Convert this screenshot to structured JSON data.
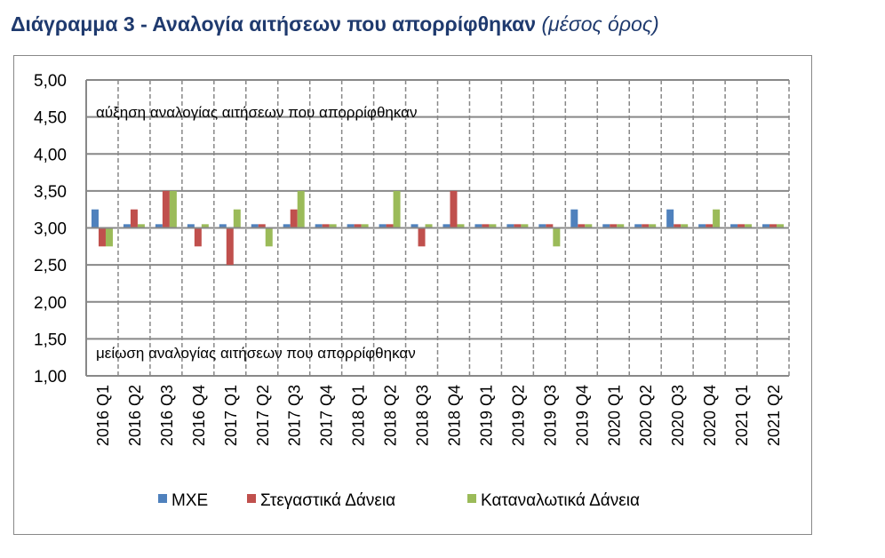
{
  "title": "Διάγραμμα 3 - Αναλογία αιτήσεων που απορρίφθηκαν",
  "subtitle": "(μέσος όρος)",
  "chart_data": {
    "type": "bar",
    "title": "Διάγραμμα 3 - Αναλογία αιτήσεων που απορρίφθηκαν (μέσος όρος)",
    "baseline": 3.0,
    "ylim": [
      1.0,
      5.0
    ],
    "yticks": [
      "1,00",
      "1,50",
      "2,00",
      "2,50",
      "3,00",
      "3,50",
      "4,00",
      "4,50",
      "5,00"
    ],
    "grid": true,
    "legend": "bottom",
    "annotations": {
      "upper": "αύξηση αναλογίας αιτήσεων που απορρίφθηκαν",
      "lower": "μείωση αναλογίας αιτήσεων που απορρίφθηκαν"
    },
    "categories": [
      "2016 Q1",
      "2016 Q2",
      "2016 Q3",
      "2016 Q4",
      "2017 Q1",
      "2017 Q2",
      "2017 Q3",
      "2017 Q4",
      "2018 Q1",
      "2018 Q2",
      "2018 Q3",
      "2018 Q4",
      "2019 Q1",
      "2019 Q2",
      "2019 Q3",
      "2019 Q4",
      "2020 Q1",
      "2020 Q2",
      "2020 Q3",
      "2020 Q4",
      "2021 Q1",
      "2021 Q2"
    ],
    "series": [
      {
        "name": "ΜΧΕ",
        "color": "#4f81bd",
        "values": [
          3.25,
          3.05,
          3.05,
          3.05,
          3.05,
          3.05,
          3.05,
          3.05,
          3.05,
          3.05,
          3.05,
          3.05,
          3.05,
          3.05,
          3.05,
          3.25,
          3.05,
          3.05,
          3.25,
          3.05,
          3.05,
          3.05
        ]
      },
      {
        "name": "Στεγαστικά Δάνεια",
        "color": "#c0504d",
        "values": [
          2.75,
          3.25,
          3.5,
          2.75,
          2.5,
          3.05,
          3.25,
          3.05,
          3.05,
          3.05,
          2.75,
          3.5,
          3.05,
          3.05,
          3.05,
          3.05,
          3.05,
          3.05,
          3.05,
          3.05,
          3.05,
          3.05
        ]
      },
      {
        "name": "Καταναλωτικά Δάνεια",
        "color": "#9bbb59",
        "values": [
          2.75,
          3.05,
          3.5,
          3.05,
          3.25,
          2.75,
          3.5,
          3.05,
          3.05,
          3.5,
          3.05,
          3.05,
          3.05,
          3.05,
          2.75,
          3.05,
          3.05,
          3.05,
          3.05,
          3.25,
          3.05,
          3.05
        ]
      }
    ]
  }
}
